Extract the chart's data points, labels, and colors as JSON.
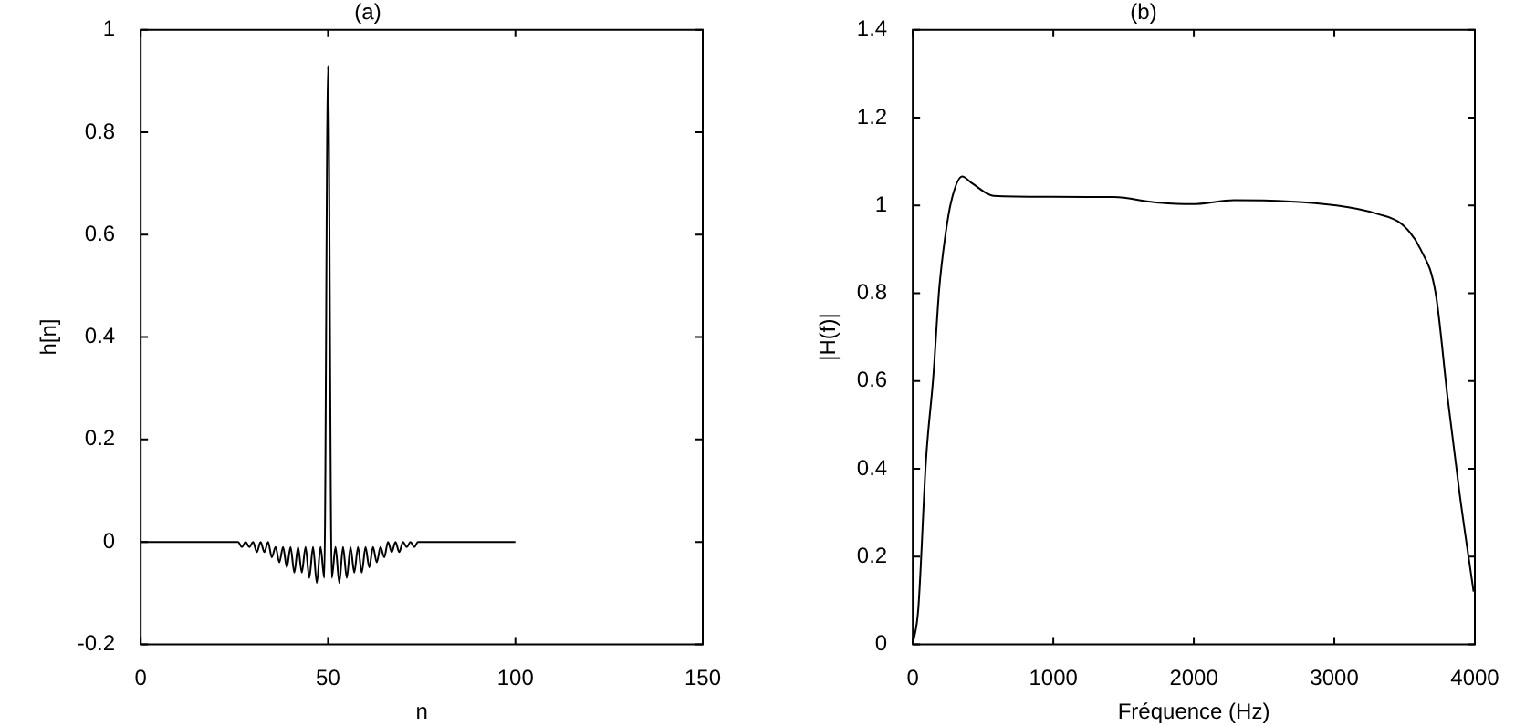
{
  "chart_data": [
    {
      "type": "line",
      "title": "(a)",
      "xlabel": "n",
      "ylabel": "h[n]",
      "color": "#000000",
      "x": [
        0,
        1,
        2,
        3,
        4,
        5,
        6,
        7,
        8,
        9,
        10,
        11,
        12,
        13,
        14,
        15,
        16,
        17,
        18,
        19,
        20,
        21,
        22,
        23,
        24,
        25,
        26,
        27,
        28,
        29,
        30,
        31,
        32,
        33,
        34,
        35,
        36,
        37,
        38,
        39,
        40,
        41,
        42,
        43,
        44,
        45,
        46,
        47,
        48,
        49,
        50,
        51,
        52,
        53,
        54,
        55,
        56,
        57,
        58,
        59,
        60,
        61,
        62,
        63,
        64,
        65,
        66,
        67,
        68,
        69,
        70,
        71,
        72,
        73,
        74,
        75,
        76,
        77,
        78,
        79,
        80,
        81,
        82,
        83,
        84,
        85,
        86,
        87,
        88,
        89,
        90,
        91,
        92,
        93,
        94,
        95,
        96,
        97,
        98,
        99,
        100
      ],
      "values": [
        0,
        0,
        0,
        0,
        0,
        0,
        0,
        0,
        0,
        0,
        0,
        0,
        0,
        0,
        0,
        0,
        0,
        0,
        0,
        0,
        0,
        0,
        0,
        0,
        0,
        0,
        0,
        -0.01,
        0,
        -0.01,
        0,
        -0.02,
        0,
        -0.02,
        0,
        -0.03,
        -0.01,
        -0.04,
        -0.01,
        -0.05,
        -0.01,
        -0.06,
        -0.01,
        -0.06,
        -0.01,
        -0.07,
        -0.01,
        -0.08,
        -0.01,
        -0.07,
        0.93,
        -0.07,
        -0.01,
        -0.08,
        -0.01,
        -0.07,
        -0.01,
        -0.06,
        -0.01,
        -0.06,
        -0.01,
        -0.05,
        -0.01,
        -0.04,
        -0.01,
        -0.03,
        0,
        -0.02,
        0,
        -0.02,
        0,
        -0.01,
        0,
        -0.01,
        0,
        0,
        0,
        0,
        0,
        0,
        0,
        0,
        0,
        0,
        0,
        0,
        0,
        0,
        0,
        0,
        0,
        0,
        0,
        0,
        0,
        0,
        0,
        0,
        0,
        0,
        0
      ],
      "xlim": [
        0,
        150
      ],
      "xticks": [
        0,
        50,
        100,
        150
      ],
      "ylim": [
        -0.2,
        1
      ],
      "yticks": [
        -0.2,
        0,
        0.2,
        0.4,
        0.6,
        0.8,
        1
      ]
    },
    {
      "type": "line",
      "title": "(b)",
      "xlabel": "Fréquence (Hz)",
      "ylabel": "|H(f)|",
      "color": "#000000",
      "x": [
        0,
        39,
        94,
        146,
        188,
        231,
        274,
        351,
        424,
        574,
        959,
        1430,
        1730,
        1987,
        2287,
        3015,
        3315,
        3486,
        3614,
        3721,
        3807,
        3893,
        3991
      ],
      "values": [
        0,
        0.08,
        0.42,
        0.61,
        0.81,
        0.93,
        1.01,
        1.066,
        1.05,
        1.022,
        1.02,
        1.019,
        1.007,
        1.003,
        1.012,
        1.0,
        0.98,
        0.956,
        0.9,
        0.8,
        0.56,
        0.34,
        0.12
      ],
      "xlim": [
        0,
        4000
      ],
      "xticks": [
        0,
        1000,
        2000,
        3000,
        4000
      ],
      "ylim": [
        0,
        1.4
      ],
      "yticks": [
        0,
        0.2,
        0.4,
        0.6,
        0.8,
        1,
        1.2,
        1.4
      ]
    }
  ]
}
